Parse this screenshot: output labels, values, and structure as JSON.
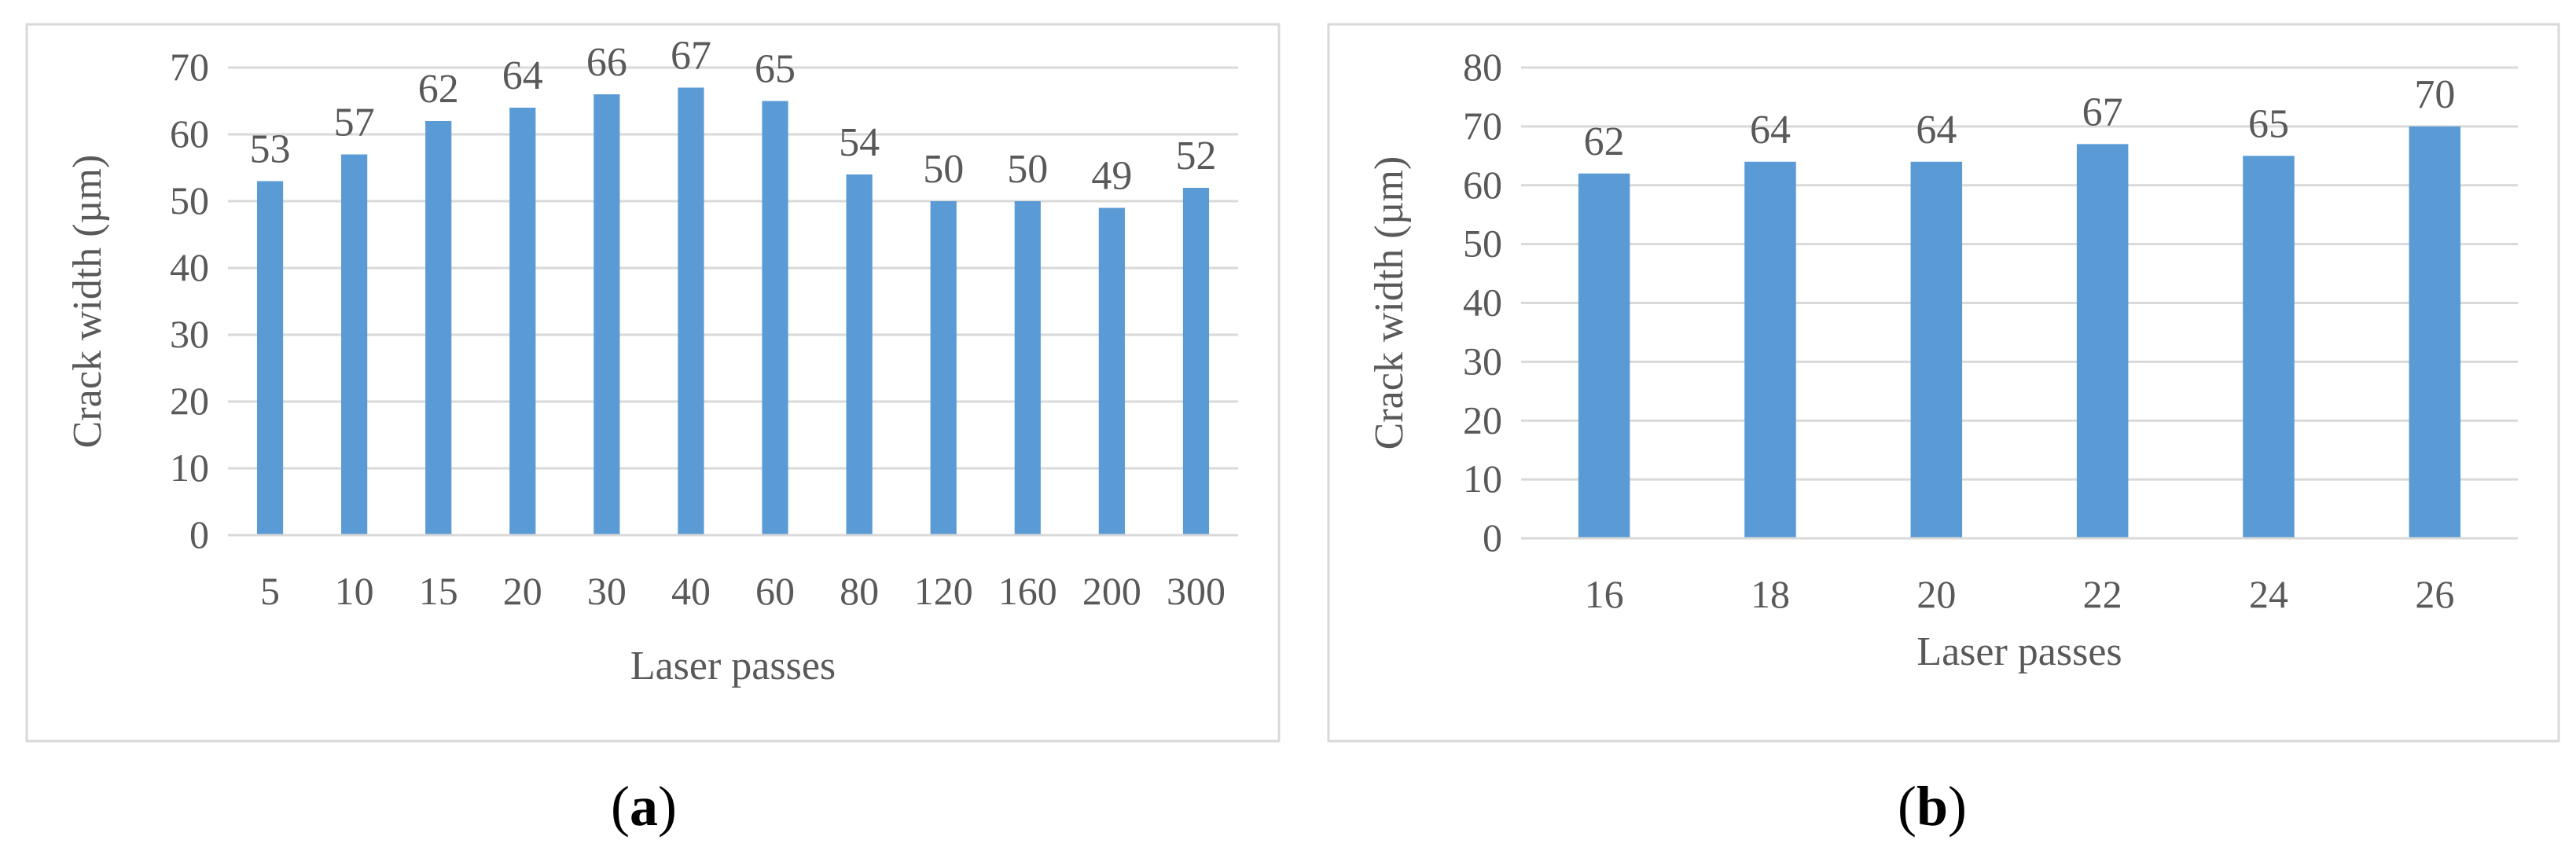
{
  "chart_data": [
    {
      "type": "bar",
      "panel_label": "a",
      "categories": [
        "5",
        "10",
        "15",
        "20",
        "30",
        "40",
        "60",
        "80",
        "120",
        "160",
        "200",
        "300"
      ],
      "values": [
        53,
        57,
        62,
        64,
        66,
        67,
        65,
        54,
        50,
        50,
        49,
        52
      ],
      "xlabel": "Laser passes",
      "ylabel": "Crack width (µm)",
      "ylim": [
        0,
        70
      ],
      "yticks": [
        0,
        10,
        20,
        30,
        40,
        50,
        60,
        70
      ],
      "grid": true,
      "data_labels": true,
      "bar_color": "#5B9BD5"
    },
    {
      "type": "bar",
      "panel_label": "b",
      "categories": [
        "16",
        "18",
        "20",
        "22",
        "24",
        "26"
      ],
      "values": [
        62,
        64,
        64,
        67,
        65,
        70
      ],
      "xlabel": "Laser passes",
      "ylabel": "Crack width (µm)",
      "ylim": [
        0,
        80
      ],
      "yticks": [
        0,
        10,
        20,
        30,
        40,
        50,
        60,
        70,
        80
      ],
      "grid": true,
      "data_labels": true,
      "bar_color": "#5B9BD5"
    }
  ]
}
